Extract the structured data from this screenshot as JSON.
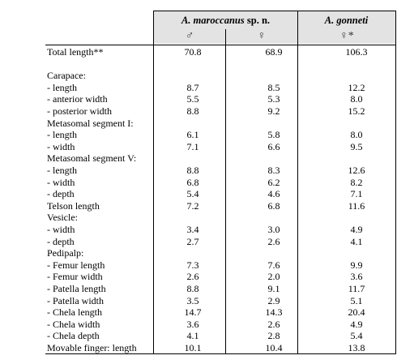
{
  "columns": {
    "species1": "A. maroccanus",
    "species1_suffix": "sp. n.",
    "species2": "A. gonneti",
    "sex_male": "♂",
    "sex_female": "♀",
    "sex_female_star": "♀*"
  },
  "rows": [
    {
      "label": "Total length**",
      "m": "70.8",
      "f": "68.9",
      "g": "106.3"
    },
    {
      "label": "",
      "m": "",
      "f": "",
      "g": ""
    },
    {
      "label": "Carapace:",
      "m": "",
      "f": "",
      "g": ""
    },
    {
      "label": "- length",
      "m": "8.7",
      "f": "8.5",
      "g": "12.2"
    },
    {
      "label": "- anterior width",
      "m": "5.5",
      "f": "5.3",
      "g": "8.0"
    },
    {
      "label": "- posterior width",
      "m": "8.8",
      "f": "9.2",
      "g": "15.2"
    },
    {
      "label": "Metasomal segment I:",
      "m": "",
      "f": "",
      "g": ""
    },
    {
      "label": "- length",
      "m": "6.1",
      "f": "5.8",
      "g": "8.0"
    },
    {
      "label": "- width",
      "m": "7.1",
      "f": "6.6",
      "g": "9.5"
    },
    {
      "label": "Metasomal segment V:",
      "m": "",
      "f": "",
      "g": ""
    },
    {
      "label": "- length",
      "m": "8.8",
      "f": "8.3",
      "g": "12.6"
    },
    {
      "label": "- width",
      "m": "6.8",
      "f": "6.2",
      "g": "8.2"
    },
    {
      "label": "- depth",
      "m": "5.4",
      "f": "4.6",
      "g": "7.1"
    },
    {
      "label": "Telson length",
      "m": "7.2",
      "f": "6.8",
      "g": "11.6"
    },
    {
      "label": "Vesicle:",
      "m": "",
      "f": "",
      "g": ""
    },
    {
      "label": "- width",
      "m": "3.4",
      "f": "3.0",
      "g": "4.9"
    },
    {
      "label": "- depth",
      "m": "2.7",
      "f": "2.6",
      "g": "4.1"
    },
    {
      "label": "Pedipalp:",
      "m": "",
      "f": "",
      "g": ""
    },
    {
      "label": "- Femur length",
      "m": "7.3",
      "f": "7.6",
      "g": "9.9"
    },
    {
      "label": "- Femur width",
      "m": "2.6",
      "f": "2.0",
      "g": "3.6"
    },
    {
      "label": "- Patella length",
      "m": "8.8",
      "f": "9.1",
      "g": "11.7"
    },
    {
      "label": "- Patella width",
      "m": "3.5",
      "f": "2.9",
      "g": "5.1"
    },
    {
      "label": "- Chela length",
      "m": "14.7",
      "f": "14.3",
      "g": "20.4"
    },
    {
      "label": "- Chela width",
      "m": "3.6",
      "f": "2.6",
      "g": "4.9"
    },
    {
      "label": "- Chela depth",
      "m": "4.1",
      "f": "2.8",
      "g": "5.4"
    },
    {
      "label": "Movable finger: length",
      "m": "10.1",
      "f": "10.4",
      "g": "13.8"
    }
  ]
}
